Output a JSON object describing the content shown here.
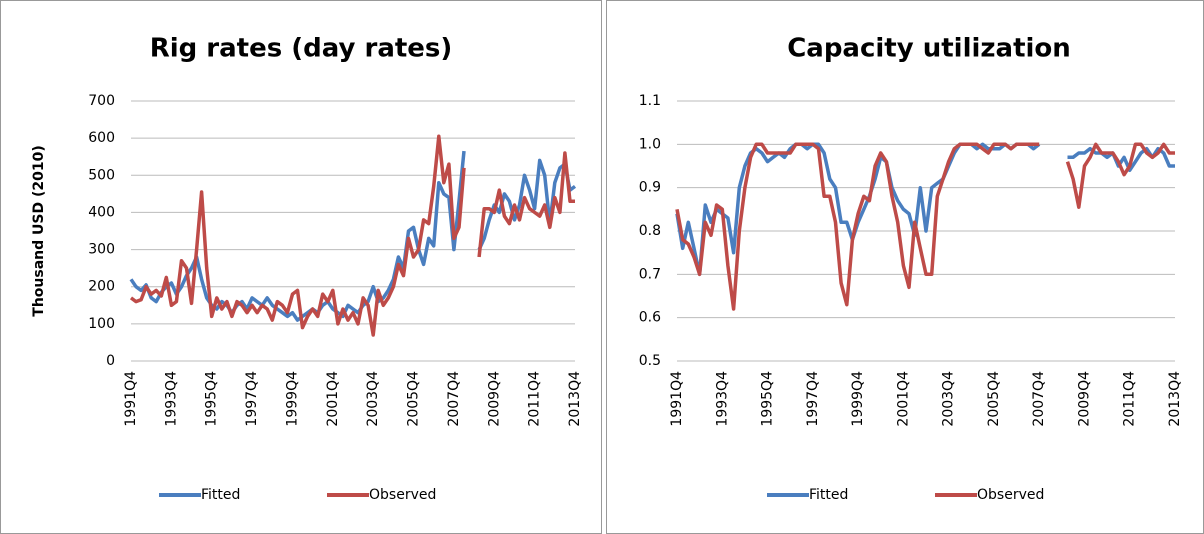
{
  "chart_data": [
    {
      "type": "line",
      "title": "Rig rates (day rates)",
      "ylabel": "Thousand  USD (2010)",
      "categories": [
        "1991Q4",
        null,
        null,
        null,
        null,
        null,
        null,
        null,
        "1993Q4",
        null,
        null,
        null,
        null,
        null,
        null,
        null,
        "1995Q4",
        null,
        null,
        null,
        null,
        null,
        null,
        null,
        "1997Q4",
        null,
        null,
        null,
        null,
        null,
        null,
        null,
        "1999Q4",
        null,
        null,
        null,
        null,
        null,
        null,
        null,
        "2001Q4",
        null,
        null,
        null,
        null,
        null,
        null,
        null,
        "2003Q4",
        null,
        null,
        null,
        null,
        null,
        null,
        null,
        "2005Q4",
        null,
        null,
        null,
        null,
        null,
        null,
        null,
        "2007Q4",
        null,
        null,
        null,
        null,
        null,
        null,
        null,
        "2009Q4",
        null,
        null,
        null,
        null,
        null,
        null,
        null,
        "2011Q4",
        null,
        null,
        null,
        null,
        null,
        null,
        null,
        "2013Q4"
      ],
      "ylim": [
        0,
        700
      ],
      "yticks": [
        0,
        100,
        200,
        300,
        400,
        500,
        600,
        700
      ],
      "grid": true,
      "series": [
        {
          "name": "Fitted",
          "color": "#4a7ebf",
          "values": [
            220,
            200,
            190,
            205,
            170,
            160,
            185,
            200,
            210,
            180,
            200,
            230,
            250,
            280,
            220,
            170,
            150,
            140,
            160,
            150,
            130,
            150,
            160,
            140,
            170,
            160,
            150,
            170,
            150,
            140,
            130,
            120,
            130,
            110,
            120,
            130,
            140,
            130,
            150,
            160,
            140,
            130,
            120,
            150,
            140,
            130,
            150,
            160,
            200,
            160,
            170,
            190,
            220,
            280,
            250,
            350,
            360,
            300,
            260,
            330,
            310,
            480,
            450,
            440,
            300,
            430,
            565,
            null,
            null,
            300,
            330,
            380,
            420,
            400,
            450,
            430,
            380,
            420,
            500,
            460,
            410,
            540,
            500,
            370,
            480,
            520,
            530,
            460,
            470
          ]
        },
        {
          "name": "Observed",
          "color": "#be4b48",
          "values": [
            170,
            160,
            165,
            200,
            180,
            190,
            175,
            225,
            150,
            160,
            270,
            250,
            155,
            300,
            455,
            250,
            120,
            170,
            140,
            160,
            120,
            160,
            150,
            130,
            150,
            130,
            150,
            140,
            110,
            160,
            150,
            130,
            180,
            190,
            90,
            120,
            140,
            120,
            180,
            160,
            190,
            100,
            140,
            110,
            130,
            100,
            170,
            150,
            70,
            190,
            150,
            170,
            200,
            260,
            230,
            330,
            280,
            300,
            380,
            370,
            470,
            605,
            480,
            530,
            330,
            360,
            520,
            null,
            null,
            280,
            410,
            410,
            400,
            460,
            390,
            370,
            420,
            380,
            440,
            410,
            400,
            390,
            420,
            360,
            440,
            400,
            560,
            430,
            430
          ]
        }
      ]
    },
    {
      "type": "line",
      "title": "Capacity utilization",
      "categories": [
        "1991Q4",
        null,
        null,
        null,
        null,
        null,
        null,
        null,
        "1993Q4",
        null,
        null,
        null,
        null,
        null,
        null,
        null,
        "1995Q4",
        null,
        null,
        null,
        null,
        null,
        null,
        null,
        "1997Q4",
        null,
        null,
        null,
        null,
        null,
        null,
        null,
        "1999Q4",
        null,
        null,
        null,
        null,
        null,
        null,
        null,
        "2001Q4",
        null,
        null,
        null,
        null,
        null,
        null,
        null,
        "2003Q4",
        null,
        null,
        null,
        null,
        null,
        null,
        null,
        "2005Q4",
        null,
        null,
        null,
        null,
        null,
        null,
        null,
        "2007Q4",
        null,
        null,
        null,
        null,
        null,
        null,
        null,
        "2009Q4",
        null,
        null,
        null,
        null,
        null,
        null,
        null,
        "2011Q4",
        null,
        null,
        null,
        null,
        null,
        null,
        null,
        "2013Q4"
      ],
      "ylim": [
        0.5,
        1.1
      ],
      "yticks": [
        0.5,
        0.6,
        0.7,
        0.8,
        0.9,
        {
          "value": 1,
          "label": "1.0"
        },
        1.1
      ],
      "grid": true,
      "series": [
        {
          "name": "Fitted",
          "color": "#4a7ebf",
          "values": [
            0.84,
            0.76,
            0.82,
            0.76,
            0.7,
            0.86,
            0.82,
            0.85,
            0.84,
            0.83,
            0.75,
            0.9,
            0.95,
            0.98,
            0.99,
            0.98,
            0.96,
            0.97,
            0.98,
            0.97,
            0.99,
            1.0,
            1.0,
            0.99,
            1.0,
            1.0,
            0.98,
            0.92,
            0.9,
            0.82,
            0.82,
            0.78,
            0.82,
            0.85,
            0.88,
            0.92,
            0.97,
            0.96,
            0.9,
            0.87,
            0.85,
            0.84,
            0.79,
            0.9,
            0.8,
            0.9,
            0.91,
            0.92,
            0.95,
            0.98,
            1.0,
            1.0,
            1.0,
            0.99,
            1.0,
            0.99,
            0.99,
            0.99,
            1.0,
            0.99,
            1.0,
            1.0,
            1.0,
            0.99,
            1.0,
            null,
            null,
            null,
            null,
            0.97,
            0.97,
            0.98,
            0.98,
            0.99,
            0.98,
            0.98,
            0.97,
            0.98,
            0.95,
            0.97,
            0.94,
            0.96,
            0.98,
            0.99,
            0.97,
            0.99,
            0.98,
            0.95,
            0.95
          ]
        },
        {
          "name": "Observed",
          "color": "#be4b48",
          "values": [
            0.85,
            0.78,
            0.77,
            0.74,
            0.7,
            0.82,
            0.79,
            0.86,
            0.85,
            0.72,
            0.62,
            0.8,
            0.9,
            0.97,
            1.0,
            1.0,
            0.98,
            0.98,
            0.98,
            0.98,
            0.98,
            1.0,
            1.0,
            1.0,
            1.0,
            0.99,
            0.88,
            0.88,
            0.82,
            0.68,
            0.63,
            0.78,
            0.84,
            0.88,
            0.87,
            0.95,
            0.98,
            0.96,
            0.88,
            0.82,
            0.72,
            0.67,
            0.82,
            0.76,
            0.7,
            0.7,
            0.88,
            0.92,
            0.96,
            0.99,
            1.0,
            1.0,
            1.0,
            1.0,
            0.99,
            0.98,
            1.0,
            1.0,
            1.0,
            0.99,
            1.0,
            1.0,
            1.0,
            1.0,
            1.0,
            null,
            null,
            null,
            null,
            0.96,
            0.92,
            0.855,
            0.95,
            0.97,
            1.0,
            0.98,
            0.98,
            0.98,
            0.96,
            0.93,
            0.95,
            1.0,
            1.0,
            0.98,
            0.97,
            0.98,
            1.0,
            0.98,
            0.98
          ]
        }
      ]
    }
  ]
}
